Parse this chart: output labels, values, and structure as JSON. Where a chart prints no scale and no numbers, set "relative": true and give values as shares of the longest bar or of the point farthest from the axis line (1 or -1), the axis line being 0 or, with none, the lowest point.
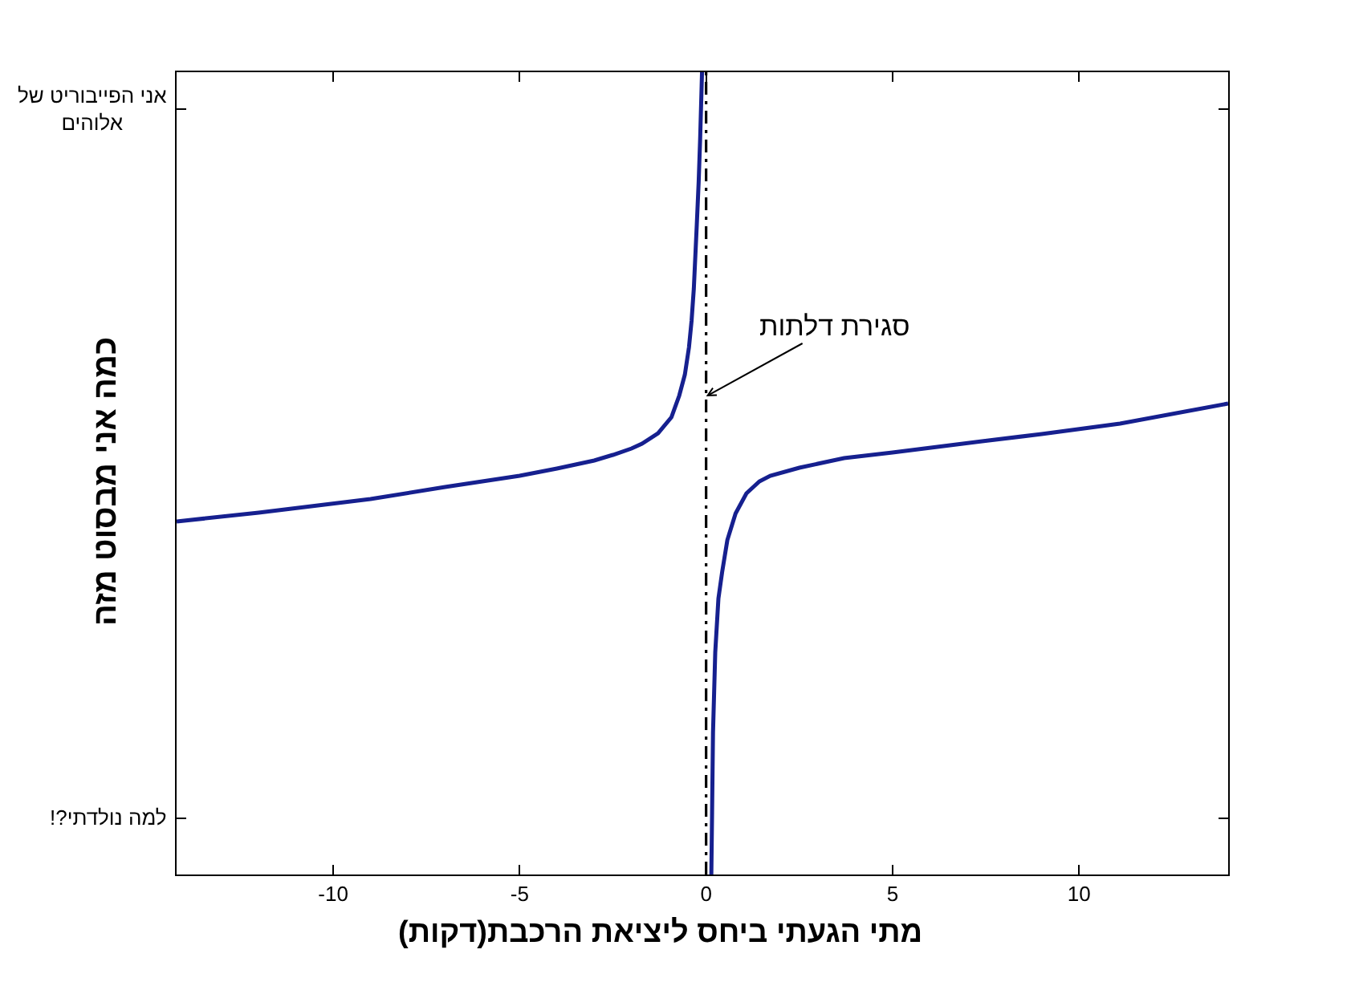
{
  "chart_data": {
    "type": "line",
    "xlabel": "מתי הגעתי ביחס ליציאת הרכבת(דקות)",
    "ylabel": "כמה אני מבסוט מזה",
    "relative": true,
    "xlim": [
      -14.2,
      14
    ],
    "xticks": [
      -10,
      -5,
      0,
      5,
      10
    ],
    "series": [
      {
        "color": "#16208f",
        "x": [
          -14.2,
          -12,
          -9,
          -7,
          -5,
          -4,
          -3,
          -2.5,
          -2,
          -1.72,
          -1.29,
          -0.93,
          -0.72,
          -0.57,
          -0.46,
          -0.39,
          -0.33,
          -0.29,
          -0.25,
          -0.2,
          -0.16,
          -0.12,
          -0.11,
          0,
          0.14,
          0.16,
          0.185,
          0.245,
          0.33,
          0.43,
          0.57,
          0.79,
          1.08,
          1.43,
          1.72,
          2.5,
          3.7,
          5,
          7.4,
          9,
          11.1,
          14
        ],
        "values": [
          0.44,
          0.451,
          0.468,
          0.483,
          0.497,
          0.506,
          0.516,
          0.523,
          0.531,
          0.537,
          0.55,
          0.57,
          0.597,
          0.623,
          0.657,
          0.69,
          0.73,
          0.77,
          0.81,
          0.863,
          0.917,
          0.983,
          1.0,
          null,
          0.0,
          0.077,
          0.177,
          0.277,
          0.344,
          0.377,
          0.417,
          0.45,
          0.475,
          0.49,
          0.497,
          0.507,
          0.519,
          0.526,
          0.54,
          0.549,
          0.562,
          0.587
        ]
      }
    ],
    "ref_lines": [
      {
        "axis": "x",
        "value": 0,
        "color": "#000000",
        "line_style": "dashdot"
      }
    ],
    "annotations": [
      {
        "text": "סגירת דלתות",
        "x": 0,
        "y": 0.596
      },
      "אני הפייבוריט של\nאלוהים",
      "למה נולדתי?!"
    ]
  }
}
